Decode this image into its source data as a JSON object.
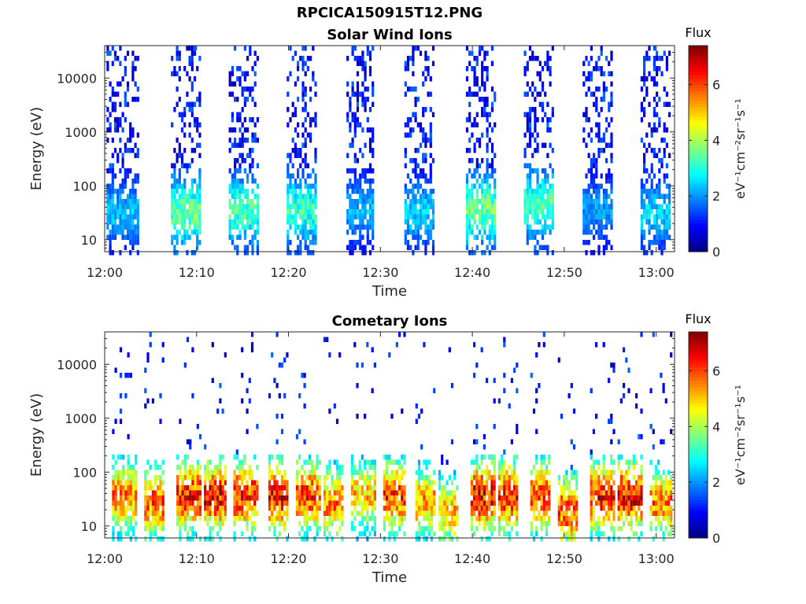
{
  "figure": {
    "title": "RPCICA150915T12.PNG"
  },
  "chart_data": [
    {
      "type": "heatmap",
      "title": "Solar Wind Ions",
      "xlabel": "Time",
      "ylabel": "Energy (eV)",
      "x_ticks": [
        "12:00",
        "12:10",
        "12:20",
        "12:30",
        "12:40",
        "12:50",
        "13:00"
      ],
      "x_range": [
        "12:00",
        "13:02"
      ],
      "y_ticks": [
        10,
        100,
        1000,
        10000
      ],
      "y_scale": "log",
      "y_range": [
        6,
        40000
      ],
      "colorbar": {
        "label_top": "Flux",
        "label": "eV⁻¹cm⁻²sr⁻¹s⁻¹",
        "range": [
          0,
          7.4
        ],
        "ticks": [
          0,
          2,
          4,
          6
        ],
        "colormap": "jet"
      },
      "bursts": [
        {
          "start_min": 0.2,
          "end_min": 3.6,
          "peak_energy_eV": 35,
          "peak_flux": 2.5
        },
        {
          "start_min": 7.2,
          "end_min": 10.4,
          "peak_energy_eV": 35,
          "peak_flux": 3.8
        },
        {
          "start_min": 13.5,
          "end_min": 16.6,
          "peak_energy_eV": 40,
          "peak_flux": 3.5
        },
        {
          "start_min": 19.8,
          "end_min": 23.0,
          "peak_energy_eV": 40,
          "peak_flux": 3.4
        },
        {
          "start_min": 26.3,
          "end_min": 29.3,
          "peak_energy_eV": 40,
          "peak_flux": 2.4
        },
        {
          "start_min": 32.6,
          "end_min": 35.8,
          "peak_energy_eV": 35,
          "peak_flux": 2.6
        },
        {
          "start_min": 39.3,
          "end_min": 42.4,
          "peak_energy_eV": 40,
          "peak_flux": 3.8
        },
        {
          "start_min": 45.6,
          "end_min": 48.8,
          "peak_energy_eV": 50,
          "peak_flux": 3.6
        },
        {
          "start_min": 52.0,
          "end_min": 55.2,
          "peak_energy_eV": 40,
          "peak_flux": 2.2
        },
        {
          "start_min": 58.3,
          "end_min": 61.5,
          "peak_energy_eV": 35,
          "peak_flux": 2.6
        }
      ]
    },
    {
      "type": "heatmap",
      "title": "Cometary Ions",
      "xlabel": "Time",
      "ylabel": "Energy (eV)",
      "x_ticks": [
        "12:00",
        "12:10",
        "12:20",
        "12:30",
        "12:40",
        "12:50",
        "13:00"
      ],
      "x_range": [
        "12:00",
        "13:02"
      ],
      "y_ticks": [
        10,
        100,
        1000,
        10000
      ],
      "y_scale": "log",
      "y_range": [
        6,
        40000
      ],
      "colorbar": {
        "label_top": "Flux",
        "label": "eV⁻¹cm⁻²sr⁻¹s⁻¹",
        "range": [
          0,
          7.4
        ],
        "ticks": [
          0,
          2,
          4,
          6
        ],
        "colormap": "jet"
      },
      "bursts": [
        {
          "start_min": 0.8,
          "end_min": 3.3,
          "peak_energy_eV": 40,
          "peak_flux": 6.0
        },
        {
          "start_min": 4.3,
          "end_min": 6.3,
          "peak_energy_eV": 30,
          "peak_flux": 6.3
        },
        {
          "start_min": 7.8,
          "end_min": 10.3,
          "peak_energy_eV": 40,
          "peak_flux": 6.8
        },
        {
          "start_min": 10.8,
          "end_min": 13.0,
          "peak_energy_eV": 40,
          "peak_flux": 7.0
        },
        {
          "start_min": 14.0,
          "end_min": 16.5,
          "peak_energy_eV": 40,
          "peak_flux": 6.8
        },
        {
          "start_min": 17.8,
          "end_min": 19.8,
          "peak_energy_eV": 40,
          "peak_flux": 7.0
        },
        {
          "start_min": 20.8,
          "end_min": 23.3,
          "peak_energy_eV": 40,
          "peak_flux": 6.5
        },
        {
          "start_min": 23.8,
          "end_min": 25.8,
          "peak_energy_eV": 30,
          "peak_flux": 6.0
        },
        {
          "start_min": 26.8,
          "end_min": 29.3,
          "peak_energy_eV": 40,
          "peak_flux": 5.5
        },
        {
          "start_min": 30.3,
          "end_min": 32.5,
          "peak_energy_eV": 40,
          "peak_flux": 6.5
        },
        {
          "start_min": 33.8,
          "end_min": 35.8,
          "peak_energy_eV": 30,
          "peak_flux": 5.8
        },
        {
          "start_min": 36.3,
          "end_min": 38.3,
          "peak_energy_eV": 20,
          "peak_flux": 5.5
        },
        {
          "start_min": 39.8,
          "end_min": 42.3,
          "peak_energy_eV": 40,
          "peak_flux": 7.0
        },
        {
          "start_min": 42.8,
          "end_min": 44.8,
          "peak_energy_eV": 40,
          "peak_flux": 6.8
        },
        {
          "start_min": 46.3,
          "end_min": 48.3,
          "peak_energy_eV": 40,
          "peak_flux": 6.5
        },
        {
          "start_min": 49.3,
          "end_min": 51.3,
          "peak_energy_eV": 20,
          "peak_flux": 6.5
        },
        {
          "start_min": 52.8,
          "end_min": 55.3,
          "peak_energy_eV": 40,
          "peak_flux": 6.8
        },
        {
          "start_min": 55.8,
          "end_min": 58.3,
          "peak_energy_eV": 40,
          "peak_flux": 7.0
        },
        {
          "start_min": 59.3,
          "end_min": 61.5,
          "peak_energy_eV": 30,
          "peak_flux": 6.0
        }
      ]
    }
  ]
}
